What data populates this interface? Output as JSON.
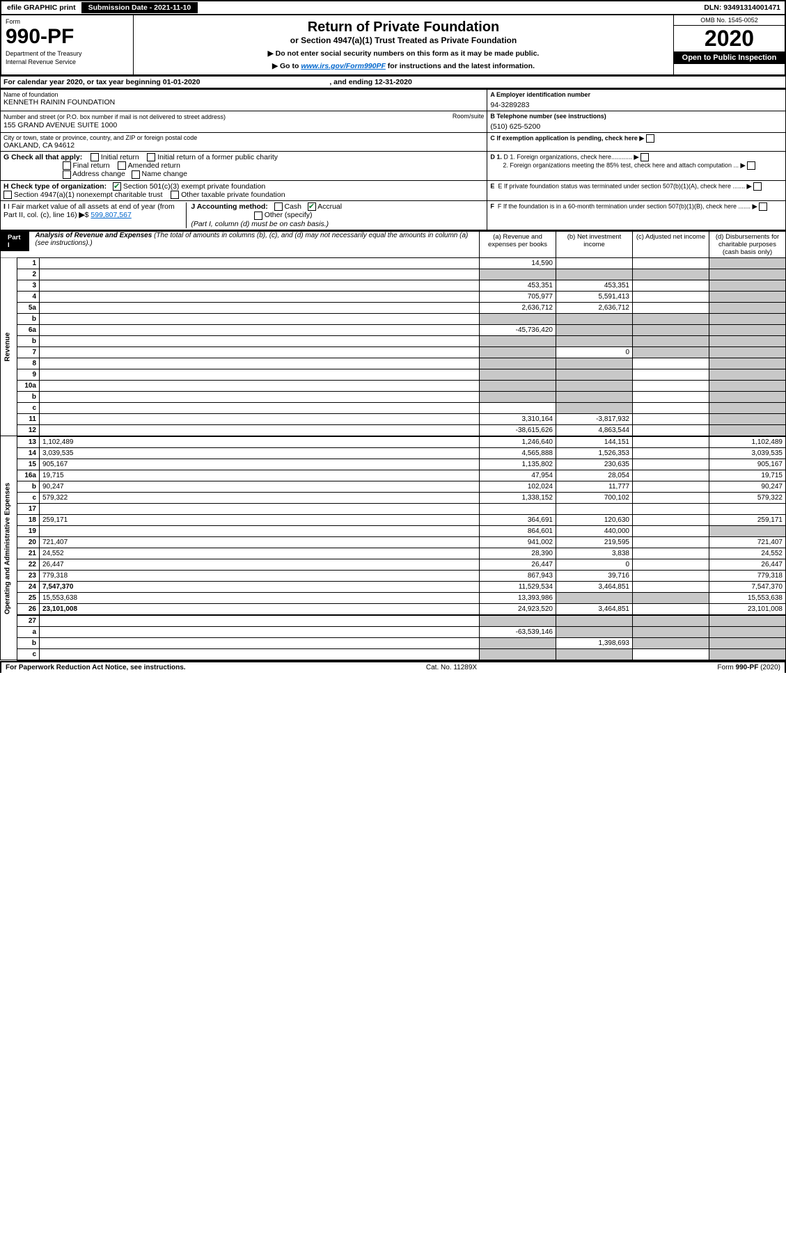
{
  "topbar": {
    "efile": "efile GRAPHIC print",
    "subdate_label": "Submission Date - 2021-11-10",
    "dln": "DLN: 93491314001471"
  },
  "header": {
    "form_word": "Form",
    "form_num": "990-PF",
    "dept1": "Department of the Treasury",
    "dept2": "Internal Revenue Service",
    "title1": "Return of Private Foundation",
    "title2": "or Section 4947(a)(1) Trust Treated as Private Foundation",
    "warn1": "▶ Do not enter social security numbers on this form as it may be made public.",
    "warn2_pre": "▶ Go to ",
    "warn2_link": "www.irs.gov/Form990PF",
    "warn2_post": " for instructions and the latest information.",
    "omb": "OMB No. 1545-0052",
    "year": "2020",
    "open": "Open to Public Inspection"
  },
  "cal": {
    "text_pre": "For calendar year 2020, or tax year beginning ",
    "begin": "01-01-2020",
    "mid": ", and ending ",
    "end": "12-31-2020"
  },
  "id": {
    "name_label": "Name of foundation",
    "name": "KENNETH RAININ FOUNDATION",
    "addr_label": "Number and street (or P.O. box number if mail is not delivered to street address)",
    "addr": "155 GRAND AVENUE SUITE 1000",
    "room_label": "Room/suite",
    "city_label": "City or town, state or province, country, and ZIP or foreign postal code",
    "city": "OAKLAND, CA  94612",
    "a_label": "A Employer identification number",
    "a_val": "94-3289283",
    "b_label": "B Telephone number (see instructions)",
    "b_val": "(510) 625-5200",
    "c_label": "C If exemption application is pending, check here",
    "d1": "D 1. Foreign organizations, check here............",
    "d2": "2. Foreign organizations meeting the 85% test, check here and attach computation ...",
    "e": "E  If private foundation status was terminated under section 507(b)(1)(A), check here .......",
    "f": "F  If the foundation is in a 60-month termination under section 507(b)(1)(B), check here .......",
    "g_label": "G Check all that apply:",
    "g_opts": [
      "Initial return",
      "Initial return of a former public charity",
      "Final return",
      "Amended return",
      "Address change",
      "Name change"
    ],
    "h_label": "H Check type of organization:",
    "h1": "Section 501(c)(3) exempt private foundation",
    "h2": "Section 4947(a)(1) nonexempt charitable trust",
    "h3": "Other taxable private foundation",
    "i_label": "I Fair market value of all assets at end of year (from Part II, col. (c), line 16)",
    "i_val": "599,807,567",
    "j_label": "J Accounting method:",
    "j_cash": "Cash",
    "j_accr": "Accrual",
    "j_other": "Other (specify)",
    "j_note": "(Part I, column (d) must be on cash basis.)"
  },
  "part1": {
    "tag": "Part I",
    "title": "Analysis of Revenue and Expenses",
    "title_note": " (The total of amounts in columns (b), (c), and (d) may not necessarily equal the amounts in column (a) (see instructions).)",
    "cols": {
      "a": "(a)   Revenue and expenses per books",
      "b": "(b)   Net investment income",
      "c": "(c)   Adjusted net income",
      "d": "(d)   Disbursements for charitable purposes (cash basis only)"
    }
  },
  "side": {
    "rev": "Revenue",
    "exp": "Operating and Administrative Expenses"
  },
  "rows": [
    {
      "n": "1",
      "d": "",
      "a": "14,590",
      "b": "",
      "c": "",
      "dgrey": true
    },
    {
      "n": "2",
      "d": "",
      "a": "",
      "b": "",
      "c": "",
      "agrey": true,
      "bgrey": true,
      "cgrey": true,
      "dgrey": true
    },
    {
      "n": "3",
      "d": "",
      "a": "453,351",
      "b": "453,351",
      "c": "",
      "dgrey": true
    },
    {
      "n": "4",
      "d": "",
      "a": "705,977",
      "b": "5,591,413",
      "c": "",
      "dgrey": true
    },
    {
      "n": "5a",
      "d": "",
      "a": "2,636,712",
      "b": "2,636,712",
      "c": "",
      "dgrey": true
    },
    {
      "n": "b",
      "d": "",
      "a": "",
      "b": "",
      "c": "",
      "agrey": true,
      "bgrey": true,
      "cgrey": true,
      "dgrey": true
    },
    {
      "n": "6a",
      "d": "",
      "a": "-45,736,420",
      "b": "",
      "c": "",
      "bgrey": true,
      "cgrey": true,
      "dgrey": true
    },
    {
      "n": "b",
      "d": "",
      "a": "",
      "b": "",
      "c": "",
      "agrey": true,
      "bgrey": true,
      "cgrey": true,
      "dgrey": true
    },
    {
      "n": "7",
      "d": "",
      "a": "",
      "b": "0",
      "c": "",
      "agrey": true,
      "cgrey": true,
      "dgrey": true
    },
    {
      "n": "8",
      "d": "",
      "a": "",
      "b": "",
      "c": "",
      "agrey": true,
      "bgrey": true,
      "dgrey": true
    },
    {
      "n": "9",
      "d": "",
      "a": "",
      "b": "",
      "c": "",
      "agrey": true,
      "bgrey": true,
      "dgrey": true
    },
    {
      "n": "10a",
      "d": "",
      "a": "",
      "b": "",
      "c": "",
      "agrey": true,
      "bgrey": true,
      "dgrey": true
    },
    {
      "n": "b",
      "d": "",
      "a": "",
      "b": "",
      "c": "",
      "agrey": true,
      "bgrey": true,
      "dgrey": true
    },
    {
      "n": "c",
      "d": "",
      "a": "",
      "b": "",
      "c": "",
      "bgrey": true,
      "dgrey": true
    },
    {
      "n": "11",
      "d": "",
      "a": "3,310,164",
      "b": "-3,817,932",
      "c": "",
      "dgrey": true
    },
    {
      "n": "12",
      "d": "",
      "a": "-38,615,626",
      "b": "4,863,544",
      "c": "",
      "bold": true,
      "dgrey": true
    },
    {
      "n": "13",
      "d": "1,102,489",
      "a": "1,246,640",
      "b": "144,151",
      "c": ""
    },
    {
      "n": "14",
      "d": "3,039,535",
      "a": "4,565,888",
      "b": "1,526,353",
      "c": ""
    },
    {
      "n": "15",
      "d": "905,167",
      "a": "1,135,802",
      "b": "230,635",
      "c": ""
    },
    {
      "n": "16a",
      "d": "19,715",
      "a": "47,954",
      "b": "28,054",
      "c": ""
    },
    {
      "n": "b",
      "d": "90,247",
      "a": "102,024",
      "b": "11,777",
      "c": ""
    },
    {
      "n": "c",
      "d": "579,322",
      "a": "1,338,152",
      "b": "700,102",
      "c": ""
    },
    {
      "n": "17",
      "d": "",
      "a": "",
      "b": "",
      "c": ""
    },
    {
      "n": "18",
      "d": "259,171",
      "a": "364,691",
      "b": "120,630",
      "c": ""
    },
    {
      "n": "19",
      "d": "",
      "a": "864,601",
      "b": "440,000",
      "c": "",
      "dgrey": true
    },
    {
      "n": "20",
      "d": "721,407",
      "a": "941,002",
      "b": "219,595",
      "c": ""
    },
    {
      "n": "21",
      "d": "24,552",
      "a": "28,390",
      "b": "3,838",
      "c": ""
    },
    {
      "n": "22",
      "d": "26,447",
      "a": "26,447",
      "b": "0",
      "c": ""
    },
    {
      "n": "23",
      "d": "779,318",
      "a": "867,943",
      "b": "39,716",
      "c": ""
    },
    {
      "n": "24",
      "d": "7,547,370",
      "a": "11,529,534",
      "b": "3,464,851",
      "c": "",
      "bold": true
    },
    {
      "n": "25",
      "d": "15,553,638",
      "a": "13,393,986",
      "b": "",
      "c": "",
      "bgrey": true,
      "cgrey": true
    },
    {
      "n": "26",
      "d": "23,101,008",
      "a": "24,923,520",
      "b": "3,464,851",
      "c": "",
      "bold": true
    },
    {
      "n": "27",
      "d": "",
      "a": "",
      "b": "",
      "c": "",
      "agrey": true,
      "bgrey": true,
      "cgrey": true,
      "dgrey": true
    },
    {
      "n": "a",
      "d": "",
      "a": "-63,539,146",
      "b": "",
      "c": "",
      "bold": true,
      "bgrey": true,
      "cgrey": true,
      "dgrey": true
    },
    {
      "n": "b",
      "d": "",
      "a": "",
      "b": "1,398,693",
      "c": "",
      "bold": true,
      "agrey": true,
      "cgrey": true,
      "dgrey": true
    },
    {
      "n": "c",
      "d": "",
      "a": "",
      "b": "",
      "c": "",
      "bold": true,
      "agrey": true,
      "bgrey": true,
      "dgrey": true
    }
  ],
  "footer": {
    "left": "For Paperwork Reduction Act Notice, see instructions.",
    "mid": "Cat. No. 11289X",
    "right": "Form 990-PF (2020)"
  }
}
